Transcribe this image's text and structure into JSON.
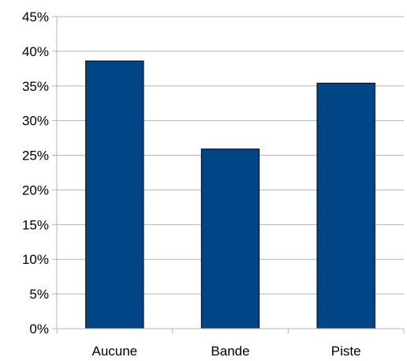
{
  "chart_data": {
    "type": "bar",
    "categories": [
      "Aucune",
      "Bande",
      "Piste"
    ],
    "values": [
      38.6,
      25.9,
      35.4
    ],
    "value_unit": "%",
    "ylim": [
      0,
      45
    ],
    "yticks": [
      0,
      5,
      10,
      15,
      20,
      25,
      30,
      35,
      40,
      45
    ],
    "ytick_labels": [
      "0%",
      "5%",
      "10%",
      "15%",
      "20%",
      "25%",
      "30%",
      "35%",
      "40%",
      "45%"
    ],
    "grid": true,
    "legend": "none",
    "colors": {
      "bar": "#004586",
      "bar_edge": "#000000",
      "grid": "#b3b3b3",
      "axis": "#b3b3b3"
    }
  }
}
